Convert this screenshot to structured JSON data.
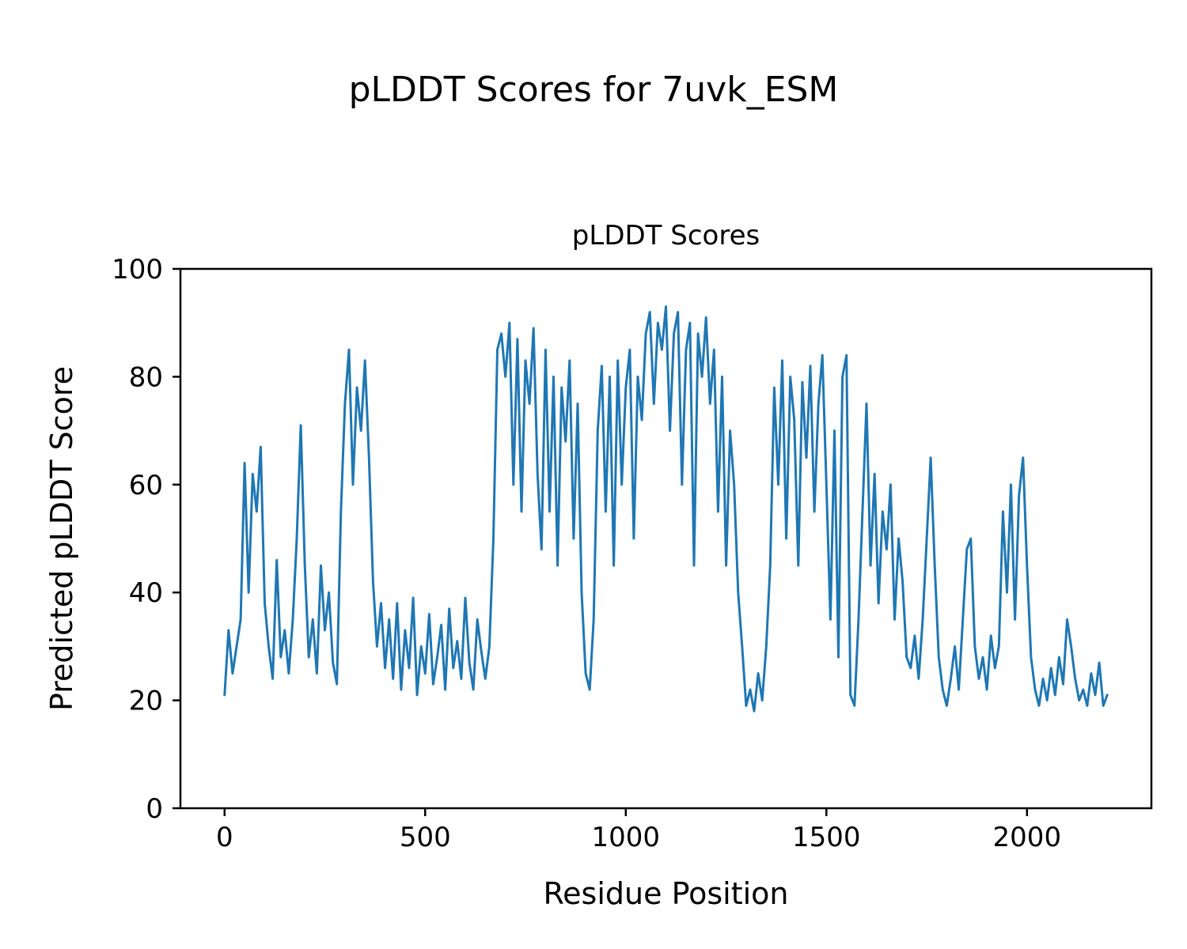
{
  "figure": {
    "title": "pLDDT Scores for 7uvk_ESM",
    "axes_title": "pLDDT Scores",
    "xlabel": "Residue Position",
    "ylabel": "Predicted pLDDT Score"
  },
  "chart_data": {
    "type": "line",
    "title": "pLDDT Scores",
    "xlabel": "Residue Position",
    "ylabel": "Predicted pLDDT Score",
    "legend": "none",
    "grid": false,
    "line_color": "#1f77b4",
    "line_width": 3,
    "xlim": [
      -110,
      2310
    ],
    "ylim": [
      0,
      100
    ],
    "xticks": [
      0,
      500,
      1000,
      1500,
      2000
    ],
    "yticks": [
      0,
      20,
      40,
      60,
      80,
      100
    ],
    "x_start": 0,
    "x_step": 10,
    "values": [
      21,
      33,
      25,
      30,
      35,
      64,
      40,
      62,
      55,
      67,
      38,
      30,
      24,
      46,
      28,
      33,
      25,
      35,
      50,
      71,
      45,
      28,
      35,
      25,
      45,
      33,
      40,
      27,
      23,
      55,
      75,
      85,
      60,
      78,
      70,
      83,
      65,
      42,
      30,
      38,
      26,
      35,
      24,
      38,
      22,
      33,
      26,
      39,
      21,
      30,
      25,
      36,
      23,
      28,
      34,
      22,
      37,
      26,
      31,
      24,
      39,
      27,
      22,
      35,
      29,
      24,
      30,
      50,
      85,
      88,
      80,
      90,
      60,
      87,
      55,
      83,
      75,
      89,
      62,
      48,
      85,
      55,
      80,
      45,
      78,
      68,
      83,
      50,
      75,
      40,
      25,
      22,
      35,
      70,
      82,
      55,
      80,
      45,
      83,
      60,
      78,
      85,
      50,
      80,
      72,
      88,
      92,
      75,
      90,
      85,
      93,
      70,
      88,
      92,
      60,
      85,
      90,
      45,
      88,
      80,
      91,
      75,
      85,
      55,
      80,
      45,
      70,
      60,
      40,
      30,
      19,
      22,
      18,
      25,
      20,
      30,
      45,
      78,
      60,
      83,
      50,
      80,
      72,
      45,
      79,
      65,
      82,
      55,
      75,
      84,
      60,
      35,
      70,
      28,
      80,
      84,
      21,
      19,
      35,
      55,
      75,
      45,
      62,
      38,
      55,
      48,
      60,
      35,
      50,
      42,
      28,
      26,
      32,
      24,
      35,
      50,
      65,
      45,
      28,
      22,
      19,
      24,
      30,
      22,
      35,
      48,
      50,
      30,
      24,
      28,
      22,
      32,
      26,
      30,
      55,
      40,
      60,
      35,
      58,
      65,
      45,
      28,
      22,
      19,
      24,
      20,
      26,
      21,
      28,
      23,
      35,
      30,
      24,
      20,
      22,
      19,
      25,
      21,
      27,
      19,
      21
    ]
  }
}
